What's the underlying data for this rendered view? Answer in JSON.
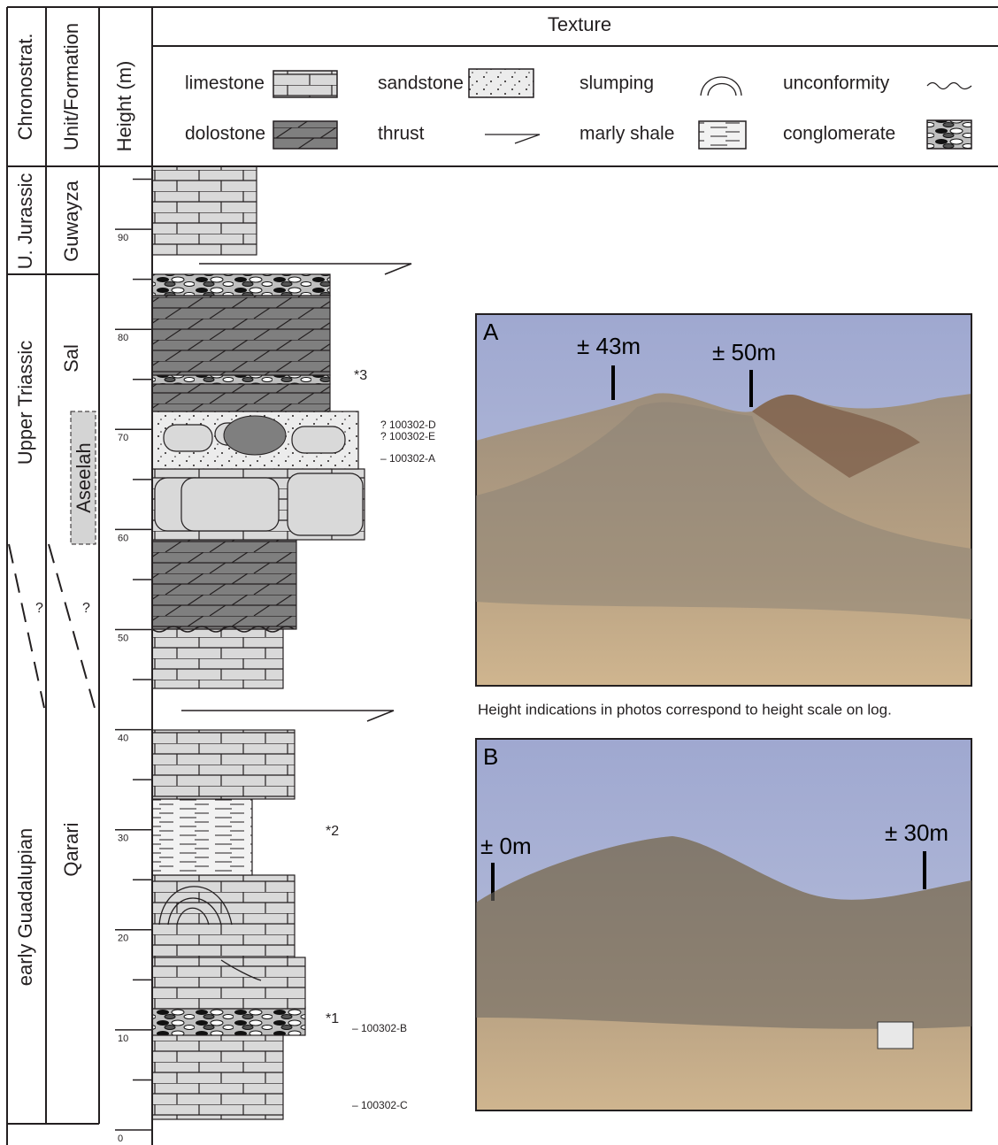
{
  "header": {
    "chronostrat": "Chronostrat.",
    "unit": "Unit/Formation",
    "height": "Height (m)",
    "texture": "Texture"
  },
  "legend": [
    "limestone",
    "sandstone",
    "slumping",
    "unconformity",
    "dolostone",
    "thrust",
    "marly shale",
    "conglomerate"
  ],
  "chronostratigraphy": [
    "U. Jurassic",
    "Upper Triassic",
    "early Guadalupian"
  ],
  "units": [
    "Guwayza",
    "Sal",
    "Aseelah",
    "Qarari"
  ],
  "uncertain_marks": [
    "?",
    "?"
  ],
  "height_scale": [
    0,
    10,
    20,
    30,
    40,
    50,
    60,
    70,
    80,
    90
  ],
  "log_annotations": [
    "*3",
    "*2",
    "*1"
  ],
  "samples": [
    "? 100302-D",
    "? 100302-E",
    "– 100302-A",
    "– 100302-B",
    "– 100302-C"
  ],
  "photos": [
    {
      "label": "A",
      "markers": [
        "± 43m",
        "± 50m"
      ]
    },
    {
      "label": "B",
      "markers": [
        "± 0m",
        "± 30m"
      ]
    }
  ],
  "caption": "Height indications in photos correspond to height scale on log."
}
